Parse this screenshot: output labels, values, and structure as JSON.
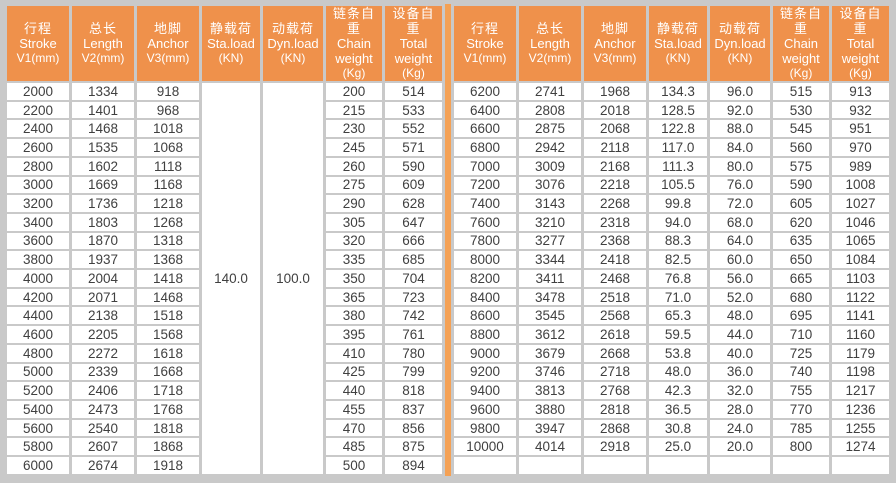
{
  "colors": {
    "header_bg": "#EF914B",
    "header_text": "#FFFFFF",
    "divider": "#F4A155",
    "grid_gap": "#C9C9C9",
    "cell_bg": "#FFFFFF",
    "cell_text": "#404040"
  },
  "table": {
    "columns": [
      {
        "key": "stroke",
        "zh": "行程",
        "en": "Stroke",
        "unit": "V1(mm)"
      },
      {
        "key": "length",
        "zh": "总长",
        "en": "Length",
        "unit": "V2(mm)"
      },
      {
        "key": "anchor",
        "zh": "地脚",
        "en": "Anchor",
        "unit": "V3(mm)"
      },
      {
        "key": "sta-load",
        "zh": "静载荷",
        "en": "Sta.load",
        "unit": "(KN)"
      },
      {
        "key": "dyn-load",
        "zh": "动载荷",
        "en": "Dyn.load",
        "unit": "(KN)"
      },
      {
        "key": "chain-weight",
        "zh": "链条自重",
        "en": "Chain weight",
        "unit": "(Kg)"
      },
      {
        "key": "total-weight",
        "zh": "设备自重",
        "en": "Total weight",
        "unit": "(Kg)"
      }
    ],
    "left": {
      "sta_load_merged": "140.0",
      "dyn_load_merged": "100.0",
      "rows": [
        [
          "2000",
          "1334",
          "918",
          "200",
          "514"
        ],
        [
          "2200",
          "1401",
          "968",
          "215",
          "533"
        ],
        [
          "2400",
          "1468",
          "1018",
          "230",
          "552"
        ],
        [
          "2600",
          "1535",
          "1068",
          "245",
          "571"
        ],
        [
          "2800",
          "1602",
          "1118",
          "260",
          "590"
        ],
        [
          "3000",
          "1669",
          "1168",
          "275",
          "609"
        ],
        [
          "3200",
          "1736",
          "1218",
          "290",
          "628"
        ],
        [
          "3400",
          "1803",
          "1268",
          "305",
          "647"
        ],
        [
          "3600",
          "1870",
          "1318",
          "320",
          "666"
        ],
        [
          "3800",
          "1937",
          "1368",
          "335",
          "685"
        ],
        [
          "4000",
          "2004",
          "1418",
          "350",
          "704"
        ],
        [
          "4200",
          "2071",
          "1468",
          "365",
          "723"
        ],
        [
          "4400",
          "2138",
          "1518",
          "380",
          "742"
        ],
        [
          "4600",
          "2205",
          "1568",
          "395",
          "761"
        ],
        [
          "4800",
          "2272",
          "1618",
          "410",
          "780"
        ],
        [
          "5000",
          "2339",
          "1668",
          "425",
          "799"
        ],
        [
          "5200",
          "2406",
          "1718",
          "440",
          "818"
        ],
        [
          "5400",
          "2473",
          "1768",
          "455",
          "837"
        ],
        [
          "5600",
          "2540",
          "1818",
          "470",
          "856"
        ],
        [
          "5800",
          "2607",
          "1868",
          "485",
          "875"
        ],
        [
          "6000",
          "2674",
          "1918",
          "500",
          "894"
        ]
      ]
    },
    "right": {
      "rows": [
        [
          "6200",
          "2741",
          "1968",
          "134.3",
          "96.0",
          "515",
          "913"
        ],
        [
          "6400",
          "2808",
          "2018",
          "128.5",
          "92.0",
          "530",
          "932"
        ],
        [
          "6600",
          "2875",
          "2068",
          "122.8",
          "88.0",
          "545",
          "951"
        ],
        [
          "6800",
          "2942",
          "2118",
          "117.0",
          "84.0",
          "560",
          "970"
        ],
        [
          "7000",
          "3009",
          "2168",
          "111.3",
          "80.0",
          "575",
          "989"
        ],
        [
          "7200",
          "3076",
          "2218",
          "105.5",
          "76.0",
          "590",
          "1008"
        ],
        [
          "7400",
          "3143",
          "2268",
          "99.8",
          "72.0",
          "605",
          "1027"
        ],
        [
          "7600",
          "3210",
          "2318",
          "94.0",
          "68.0",
          "620",
          "1046"
        ],
        [
          "7800",
          "3277",
          "2368",
          "88.3",
          "64.0",
          "635",
          "1065"
        ],
        [
          "8000",
          "3344",
          "2418",
          "82.5",
          "60.0",
          "650",
          "1084"
        ],
        [
          "8200",
          "3411",
          "2468",
          "76.8",
          "56.0",
          "665",
          "1103"
        ],
        [
          "8400",
          "3478",
          "2518",
          "71.0",
          "52.0",
          "680",
          "1122"
        ],
        [
          "8600",
          "3545",
          "2568",
          "65.3",
          "48.0",
          "695",
          "1141"
        ],
        [
          "8800",
          "3612",
          "2618",
          "59.5",
          "44.0",
          "710",
          "1160"
        ],
        [
          "9000",
          "3679",
          "2668",
          "53.8",
          "40.0",
          "725",
          "1179"
        ],
        [
          "9200",
          "3746",
          "2718",
          "48.0",
          "36.0",
          "740",
          "1198"
        ],
        [
          "9400",
          "3813",
          "2768",
          "42.3",
          "32.0",
          "755",
          "1217"
        ],
        [
          "9600",
          "3880",
          "2818",
          "36.5",
          "28.0",
          "770",
          "1236"
        ],
        [
          "9800",
          "3947",
          "2868",
          "30.8",
          "24.0",
          "785",
          "1255"
        ],
        [
          "10000",
          "4014",
          "2918",
          "25.0",
          "20.0",
          "800",
          "1274"
        ],
        [
          "",
          "",
          "",
          "",
          "",
          "",
          ""
        ]
      ]
    }
  }
}
